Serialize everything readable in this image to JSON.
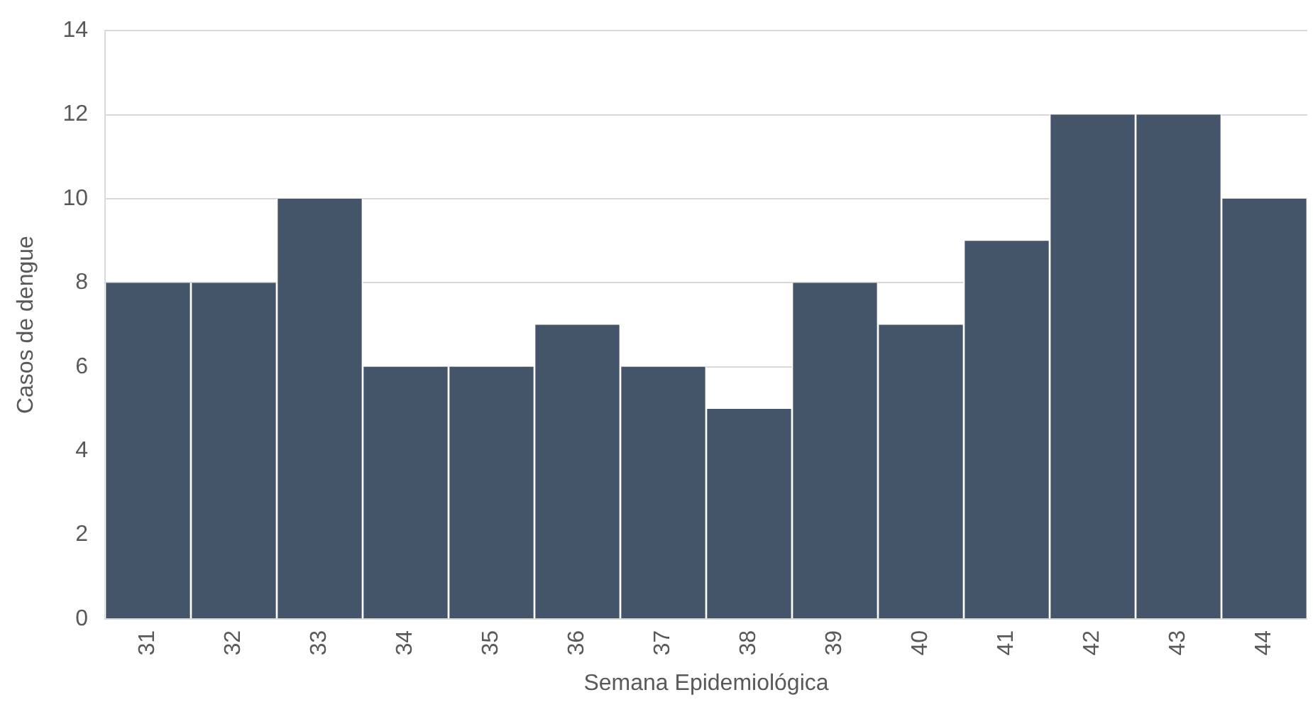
{
  "chart_data": {
    "type": "bar",
    "xlabel": "Semana Epidemiológica",
    "ylabel": "Casos de dengue",
    "categories": [
      "31",
      "32",
      "33",
      "34",
      "35",
      "36",
      "37",
      "38",
      "39",
      "40",
      "41",
      "42",
      "43",
      "44"
    ],
    "values": [
      8,
      8,
      10,
      6,
      6,
      7,
      6,
      5,
      8,
      7,
      9,
      12,
      12,
      10
    ],
    "color": "#445469",
    "ylim": [
      0,
      14
    ],
    "yticks": [
      0,
      2,
      4,
      6,
      8,
      10,
      12,
      14
    ],
    "grid": "y",
    "legend": false
  }
}
